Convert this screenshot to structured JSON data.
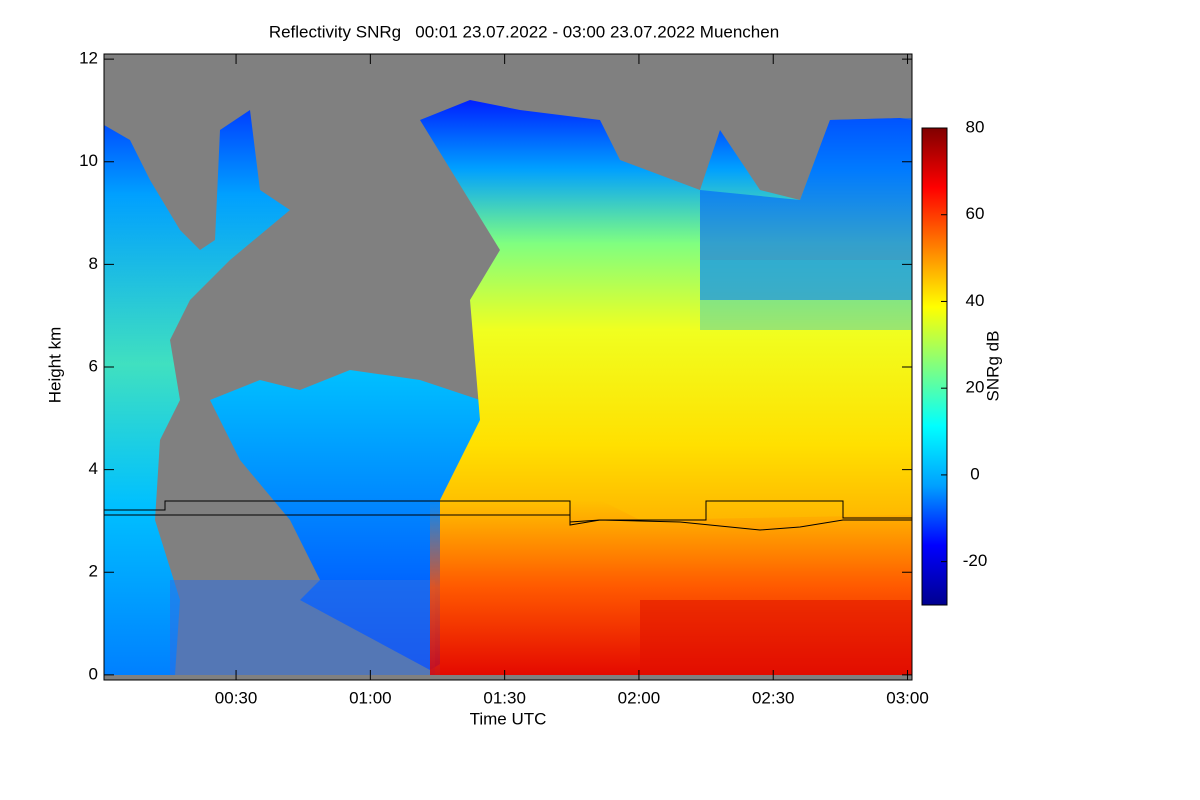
{
  "chart_data": {
    "type": "heatmap",
    "title": "Reflectivity SNRg   00:01 23.07.2022 - 03:00 23.07.2022 Muenchen",
    "x_label": "Time UTC",
    "y_label": "Height km",
    "xlim": [
      0.5,
      181
    ],
    "xticks": [
      {
        "value": 30,
        "label": "00:30"
      },
      {
        "value": 60,
        "label": "01:00"
      },
      {
        "value": 90,
        "label": "01:30"
      },
      {
        "value": 120,
        "label": "02:00"
      },
      {
        "value": 150,
        "label": "02:30"
      },
      {
        "value": 180,
        "label": "03:00"
      }
    ],
    "ylim": [
      -0.1,
      12.1
    ],
    "yticks": [
      0,
      2,
      4,
      6,
      8,
      10,
      12
    ],
    "colorbar": {
      "label": "SNRg dB",
      "lim": [
        -30,
        80
      ],
      "ticks": [
        -20,
        0,
        20,
        40,
        60,
        80
      ],
      "colormap": [
        "#00008f",
        "#0000ff",
        "#00a0ff",
        "#00ffff",
        "#80ff80",
        "#ffff00",
        "#ff8000",
        "#ff0000",
        "#800000"
      ]
    }
  }
}
